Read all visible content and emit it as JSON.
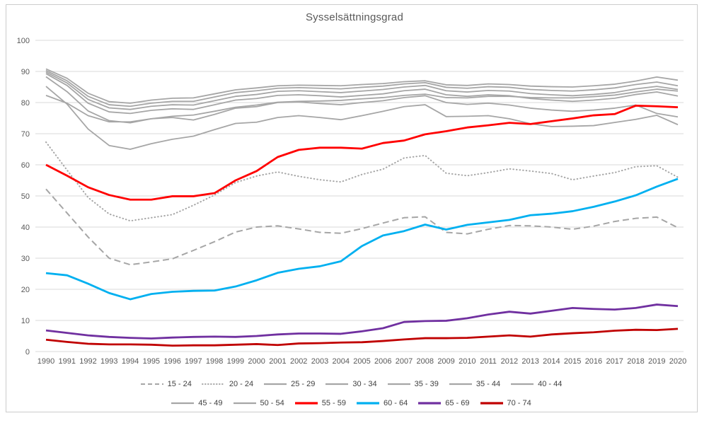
{
  "chart_data": {
    "type": "line",
    "title": "Sysselsättningsgrad",
    "xlabel": "",
    "ylabel": "",
    "ylim": [
      0,
      100
    ],
    "yticks": [
      0,
      10,
      20,
      30,
      40,
      50,
      60,
      70,
      80,
      90,
      100
    ],
    "grid": "horizontal",
    "legend_position": "bottom",
    "x": [
      1990,
      1991,
      1992,
      1993,
      1994,
      1995,
      1996,
      1997,
      1998,
      1999,
      2000,
      2001,
      2002,
      2003,
      2004,
      2005,
      2006,
      2007,
      2008,
      2009,
      2010,
      2011,
      2012,
      2013,
      2014,
      2015,
      2016,
      2017,
      2018,
      2019,
      2020
    ],
    "legend_rows": [
      [
        "15 - 24",
        "20 - 24",
        "25 - 29",
        "30 - 34",
        "35 - 39",
        "35 - 44",
        "40 - 44"
      ],
      [
        "45 - 49",
        "50 - 54",
        "55 - 59",
        "60 - 64",
        "65 - 69",
        "70 - 74"
      ]
    ],
    "series": [
      {
        "name": "15 - 24",
        "color": "#a6a6a6",
        "style": "dashed",
        "width": 2,
        "values": [
          52.2,
          44.5,
          36.8,
          30.0,
          27.9,
          28.8,
          29.8,
          32.5,
          35.3,
          38.4,
          40.0,
          40.4,
          39.4,
          38.3,
          38.0,
          39.5,
          41.3,
          43.0,
          43.3,
          38.3,
          37.8,
          39.3,
          40.5,
          40.4,
          40.0,
          39.3,
          40.3,
          41.8,
          42.8,
          43.2,
          39.8
        ]
      },
      {
        "name": "20 - 24",
        "color": "#a6a6a6",
        "style": "dotted",
        "width": 2,
        "values": [
          67.3,
          58.3,
          49.5,
          44.2,
          42.0,
          43.0,
          44.0,
          47.0,
          50.3,
          54.3,
          56.4,
          57.7,
          56.3,
          55.2,
          54.5,
          56.9,
          58.6,
          62.2,
          63.0,
          57.3,
          56.5,
          57.5,
          58.7,
          58.0,
          57.2,
          55.2,
          56.4,
          57.5,
          59.4,
          59.7,
          56.0
        ]
      },
      {
        "name": "25 - 29",
        "color": "#a6a6a6",
        "style": "solid",
        "width": 1.8,
        "values": [
          85.2,
          79.5,
          71.5,
          66.2,
          65.0,
          66.8,
          68.2,
          69.2,
          71.3,
          73.3,
          73.7,
          75.2,
          75.8,
          75.2,
          74.5,
          75.8,
          77.2,
          78.7,
          79.3,
          75.5,
          75.6,
          75.8,
          74.8,
          73.2,
          72.3,
          72.4,
          72.6,
          73.6,
          74.6,
          75.9,
          72.9
        ]
      },
      {
        "name": "30 - 34",
        "color": "#a6a6a6",
        "style": "solid",
        "width": 1.8,
        "values": [
          88.3,
          83.5,
          77.3,
          74.2,
          73.5,
          74.8,
          75.2,
          74.4,
          76.2,
          78.2,
          78.7,
          80.0,
          80.2,
          79.7,
          79.3,
          80.0,
          80.6,
          81.6,
          82.2,
          80.0,
          79.4,
          79.8,
          79.2,
          78.2,
          77.6,
          77.2,
          77.6,
          78.2,
          79.2,
          76.5,
          75.4
        ]
      },
      {
        "name": "35 - 39",
        "color": "#a6a6a6",
        "style": "solid",
        "width": 1.8,
        "values": [
          89.3,
          85.5,
          79.8,
          77.0,
          76.5,
          77.5,
          78.0,
          77.8,
          79.3,
          80.8,
          81.3,
          82.3,
          82.5,
          82.2,
          81.8,
          82.3,
          82.8,
          83.8,
          84.3,
          82.5,
          82.0,
          82.5,
          82.2,
          81.3,
          80.8,
          80.4,
          80.8,
          81.4,
          82.6,
          83.4,
          82.1
        ]
      },
      {
        "name": "35 - 44",
        "color": "#a6a6a6",
        "style": "solid",
        "width": 1.8,
        "values": [
          89.8,
          86.3,
          81.0,
          78.3,
          77.8,
          78.8,
          79.3,
          79.2,
          80.6,
          82.0,
          82.6,
          83.6,
          83.8,
          83.5,
          83.2,
          83.7,
          84.2,
          85.0,
          85.5,
          83.8,
          83.4,
          83.9,
          83.7,
          82.9,
          82.5,
          82.2,
          82.6,
          83.2,
          84.4,
          85.2,
          84.2
        ]
      },
      {
        "name": "40 - 44",
        "color": "#a6a6a6",
        "style": "solid",
        "width": 1.8,
        "values": [
          90.3,
          87.0,
          82.0,
          79.3,
          78.8,
          79.8,
          80.4,
          80.4,
          81.8,
          83.2,
          83.8,
          84.6,
          84.8,
          84.6,
          84.4,
          84.9,
          85.3,
          86.0,
          86.4,
          84.9,
          84.6,
          85.1,
          84.9,
          84.2,
          83.9,
          83.7,
          84.1,
          84.7,
          85.8,
          86.6,
          85.4
        ]
      },
      {
        "name": "45 - 49",
        "color": "#a6a6a6",
        "style": "solid",
        "width": 1.8,
        "values": [
          90.8,
          87.8,
          83.0,
          80.3,
          79.8,
          80.8,
          81.4,
          81.5,
          82.8,
          84.1,
          84.7,
          85.4,
          85.6,
          85.5,
          85.4,
          85.8,
          86.1,
          86.7,
          87.0,
          85.7,
          85.5,
          86.0,
          85.8,
          85.3,
          85.1,
          85.0,
          85.4,
          85.9,
          86.9,
          88.2,
          87.2
        ]
      },
      {
        "name": "50 - 54",
        "color": "#a6a6a6",
        "style": "solid",
        "width": 1.8,
        "values": [
          82.3,
          79.8,
          75.8,
          73.8,
          73.8,
          74.8,
          75.6,
          76.0,
          77.2,
          78.5,
          79.2,
          80.1,
          80.4,
          80.5,
          80.7,
          81.2,
          81.6,
          82.3,
          82.7,
          81.6,
          81.5,
          82.0,
          82.0,
          81.6,
          81.5,
          81.5,
          81.9,
          82.4,
          83.4,
          84.3,
          83.7
        ]
      },
      {
        "name": "55 - 59",
        "color": "#ff0000",
        "style": "solid",
        "width": 2.8,
        "values": [
          60.0,
          56.5,
          52.8,
          50.3,
          48.8,
          48.8,
          49.9,
          49.9,
          50.9,
          55.0,
          58.0,
          62.5,
          64.8,
          65.5,
          65.5,
          65.2,
          67.0,
          67.8,
          69.8,
          70.8,
          72.0,
          72.7,
          73.5,
          73.1,
          74.0,
          74.9,
          75.9,
          76.3,
          79.0,
          78.8,
          78.5
        ]
      },
      {
        "name": "60 - 64",
        "color": "#00b0f0",
        "style": "solid",
        "width": 2.8,
        "values": [
          25.2,
          24.5,
          21.8,
          18.8,
          16.8,
          18.5,
          19.2,
          19.5,
          19.6,
          20.9,
          22.9,
          25.3,
          26.6,
          27.4,
          29.0,
          33.9,
          37.3,
          38.7,
          40.8,
          39.2,
          40.7,
          41.5,
          42.3,
          43.8,
          44.3,
          45.1,
          46.5,
          48.2,
          50.2,
          53.0,
          55.5
        ]
      },
      {
        "name": "65 - 69",
        "color": "#7030a0",
        "style": "solid",
        "width": 2.8,
        "values": [
          6.8,
          6.0,
          5.2,
          4.7,
          4.4,
          4.2,
          4.5,
          4.7,
          4.8,
          4.7,
          5.0,
          5.5,
          5.8,
          5.8,
          5.7,
          6.5,
          7.5,
          9.5,
          9.8,
          9.9,
          10.7,
          11.9,
          12.8,
          12.2,
          13.1,
          14.0,
          13.7,
          13.5,
          14.0,
          15.1,
          14.6
        ]
      },
      {
        "name": "70 - 74",
        "color": "#c00000",
        "style": "solid",
        "width": 2.8,
        "values": [
          3.8,
          3.1,
          2.5,
          2.3,
          2.3,
          2.2,
          1.9,
          2.0,
          2.0,
          2.2,
          2.4,
          2.1,
          2.6,
          2.7,
          2.9,
          3.0,
          3.4,
          3.9,
          4.3,
          4.3,
          4.4,
          4.8,
          5.2,
          4.8,
          5.5,
          5.9,
          6.2,
          6.7,
          7.0,
          6.9,
          7.3
        ]
      }
    ],
    "colors": {
      "grid": "#d9d9d9",
      "tick_text": "#595959",
      "title_text": "#595959",
      "frame_border": "#cccccc"
    }
  }
}
